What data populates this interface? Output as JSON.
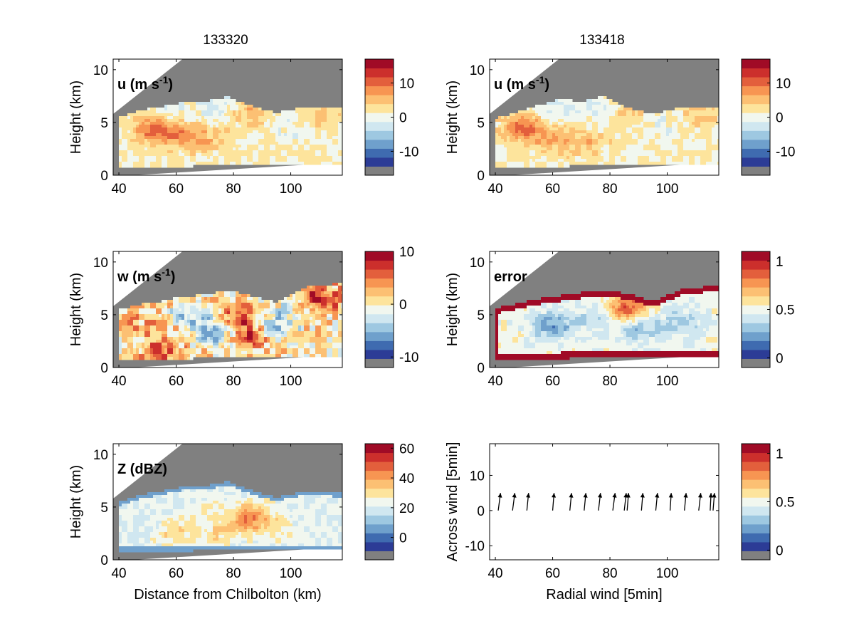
{
  "figure": {
    "left_title": "133320",
    "right_title": "133418"
  },
  "colormap": [
    "#2c3c96",
    "#3f6bb0",
    "#6fa0cc",
    "#9ec8e1",
    "#d0e7f0",
    "#f1f7ef",
    "#fde49c",
    "#fcc073",
    "#f79552",
    "#e35f3c",
    "#cc2f2c",
    "#a00b26"
  ],
  "masked_color": "#808080",
  "chart_data": [
    {
      "id": "u-133320",
      "type": "heatmap",
      "variable": "u",
      "panel_label": "u (m s",
      "panel_label_sup": "-1",
      "panel_label_close": ")",
      "ylabel": "Height (km)",
      "xlabel": "",
      "xlim": [
        38,
        118
      ],
      "ylim": [
        0,
        11
      ],
      "xticks": [
        "40",
        "60",
        "80",
        "100"
      ],
      "yticks": [
        "0",
        "5",
        "10"
      ],
      "colorbar": {
        "min": -17,
        "max": 17,
        "ticks": [
          "10",
          "0",
          "-10"
        ],
        "tick_values": [
          10,
          0,
          -10
        ]
      },
      "echo_top_km": {
        "x": [
          40,
          48,
          55,
          62,
          70,
          78,
          86,
          95,
          105,
          118
        ],
        "y": [
          5.5,
          6.2,
          6.5,
          6.9,
          7.0,
          7.4,
          6.6,
          5.9,
          6.5,
          6.3
        ]
      },
      "features": [
        {
          "x": 52,
          "y": 4.3,
          "v": 9
        },
        {
          "x": 62,
          "y": 3.8,
          "v": 6
        },
        {
          "x": 70,
          "y": 3.5,
          "v": 4
        },
        {
          "x": 58,
          "y": 6.2,
          "v": -3
        },
        {
          "x": 75,
          "y": 6.5,
          "v": -4
        },
        {
          "x": 85,
          "y": 6.0,
          "v": 5
        },
        {
          "x": 100,
          "y": 4.5,
          "v": -2
        },
        {
          "x": 110,
          "y": 5.5,
          "v": 3
        },
        {
          "x": 92,
          "y": 2.5,
          "v": 1
        }
      ]
    },
    {
      "id": "u-133418",
      "type": "heatmap",
      "variable": "u",
      "panel_label": "u (m s",
      "panel_label_sup": "-1",
      "panel_label_close": ")",
      "ylabel": "Height (km)",
      "xlabel": "",
      "xlim": [
        38,
        118
      ],
      "ylim": [
        0,
        11
      ],
      "xticks": [
        "40",
        "60",
        "80",
        "100"
      ],
      "yticks": [
        "0",
        "5",
        "10"
      ],
      "colorbar": {
        "min": -17,
        "max": 17,
        "ticks": [
          "10",
          "0",
          "-10"
        ],
        "tick_values": [
          10,
          0,
          -10
        ]
      },
      "echo_top_km": {
        "x": [
          40,
          48,
          55,
          62,
          70,
          78,
          86,
          95,
          105,
          118
        ],
        "y": [
          5.4,
          6.0,
          6.6,
          7.2,
          7.0,
          7.5,
          6.4,
          5.8,
          6.4,
          6.3
        ]
      },
      "features": [
        {
          "x": 50,
          "y": 4.5,
          "v": 9
        },
        {
          "x": 60,
          "y": 3.5,
          "v": 5
        },
        {
          "x": 72,
          "y": 3.2,
          "v": 4
        },
        {
          "x": 62,
          "y": 6.3,
          "v": -4
        },
        {
          "x": 78,
          "y": 6.0,
          "v": -3
        },
        {
          "x": 86,
          "y": 5.8,
          "v": 4
        },
        {
          "x": 98,
          "y": 4.8,
          "v": -2
        },
        {
          "x": 112,
          "y": 5.6,
          "v": 3
        }
      ]
    },
    {
      "id": "w-133320",
      "type": "heatmap",
      "variable": "w",
      "panel_label": "w (m s",
      "panel_label_sup": "-1",
      "panel_label_close": ")",
      "ylabel": "Height (km)",
      "xlabel": "",
      "xlim": [
        38,
        118
      ],
      "ylim": [
        0,
        11
      ],
      "xticks": [
        "40",
        "60",
        "80",
        "100"
      ],
      "yticks": [
        "0",
        "5",
        "10"
      ],
      "colorbar": {
        "min": -12,
        "max": 10,
        "ticks": [
          "10",
          "0",
          "-10"
        ],
        "tick_values": [
          10,
          0,
          -10
        ]
      },
      "echo_top_km": {
        "x": [
          40,
          48,
          55,
          62,
          70,
          78,
          86,
          95,
          105,
          118
        ],
        "y": [
          5.5,
          6.0,
          6.3,
          6.7,
          6.9,
          7.3,
          6.8,
          6.2,
          7.6,
          8.0
        ]
      },
      "features": [
        {
          "x": 75,
          "y": 3.5,
          "v": -9
        },
        {
          "x": 80,
          "y": 4.5,
          "v": 7
        },
        {
          "x": 85,
          "y": 3.0,
          "v": 6
        },
        {
          "x": 65,
          "y": 5.0,
          "v": -4
        },
        {
          "x": 95,
          "y": 4.0,
          "v": -5
        },
        {
          "x": 110,
          "y": 6.5,
          "v": 8
        },
        {
          "x": 55,
          "y": 1.5,
          "v": 6
        },
        {
          "x": 50,
          "y": 4.0,
          "v": 2
        },
        {
          "x": 100,
          "y": 5.5,
          "v": -2
        }
      ]
    },
    {
      "id": "error-133418",
      "type": "heatmap",
      "variable": "error",
      "panel_label": "error",
      "panel_label_sup": "",
      "panel_label_close": "",
      "ylabel": "Height (km)",
      "xlabel": "",
      "xlim": [
        38,
        118
      ],
      "ylim": [
        0,
        11
      ],
      "xticks": [
        "40",
        "60",
        "80",
        "100"
      ],
      "yticks": [
        "0",
        "5",
        "10"
      ],
      "colorbar": {
        "min": -0.1,
        "max": 1.1,
        "ticks": [
          "1",
          "0.5",
          "0"
        ],
        "tick_values": [
          1,
          0.5,
          0
        ]
      },
      "echo_top_km": {
        "x": [
          40,
          48,
          55,
          62,
          70,
          78,
          86,
          95,
          105,
          118
        ],
        "y": [
          5.6,
          6.1,
          6.5,
          6.8,
          7.1,
          7.3,
          7.0,
          6.3,
          7.4,
          7.8
        ]
      },
      "features": [
        {
          "x": 60,
          "y": 4.0,
          "v": 0.15
        },
        {
          "x": 75,
          "y": 4.5,
          "v": 0.3
        },
        {
          "x": 90,
          "y": 3.8,
          "v": 0.2
        },
        {
          "x": 105,
          "y": 4.2,
          "v": 0.25
        },
        {
          "x": 86,
          "y": 5.5,
          "v": 0.9
        }
      ]
    },
    {
      "id": "z-133320",
      "type": "heatmap",
      "variable": "Z",
      "panel_label": "Z (dBZ)",
      "panel_label_sup": "",
      "panel_label_close": "",
      "ylabel": "Height (km)",
      "xlabel": "Distance from Chilbolton (km)",
      "xlim": [
        38,
        118
      ],
      "ylim": [
        0,
        11
      ],
      "xticks": [
        "40",
        "60",
        "80",
        "100"
      ],
      "yticks": [
        "0",
        "5",
        "10"
      ],
      "colorbar": {
        "min": -15,
        "max": 63,
        "ticks": [
          "60",
          "40",
          "20",
          "0"
        ],
        "tick_values": [
          60,
          40,
          20,
          0
        ]
      },
      "echo_top_km": {
        "x": [
          40,
          48,
          55,
          62,
          70,
          78,
          86,
          95,
          105,
          118
        ],
        "y": [
          5.5,
          6.2,
          6.5,
          6.9,
          7.0,
          7.4,
          6.6,
          5.9,
          6.5,
          6.3
        ]
      },
      "features": [
        {
          "x": 86,
          "y": 4.0,
          "v": 42
        },
        {
          "x": 60,
          "y": 2.5,
          "v": 30
        },
        {
          "x": 75,
          "y": 2.5,
          "v": 28
        },
        {
          "x": 95,
          "y": 2.8,
          "v": 26
        },
        {
          "x": 70,
          "y": 4.5,
          "v": 22
        }
      ]
    },
    {
      "id": "arrows-133418",
      "type": "scatter",
      "variable": "wind",
      "panel_label": "",
      "panel_label_sup": "",
      "panel_label_close": "",
      "ylabel": "Across wind [5min]",
      "xlabel": "Radial wind [5min]",
      "xlim": [
        38,
        118
      ],
      "ylim": [
        -14,
        19
      ],
      "xticks": [
        "40",
        "60",
        "80",
        "100"
      ],
      "yticks": [
        "-10",
        "0",
        "10"
      ],
      "colorbar": {
        "min": -0.1,
        "max": 1.1,
        "ticks": [
          "1",
          "0.5",
          "0"
        ],
        "tick_values": [
          1,
          0.5,
          0
        ]
      },
      "arrows": {
        "x": [
          41,
          46,
          51,
          60,
          66,
          71,
          76,
          81,
          85,
          86,
          91,
          96,
          101,
          106,
          111,
          115,
          116
        ],
        "y": [
          0,
          0,
          0,
          0,
          0,
          0,
          0,
          0,
          0,
          0,
          0,
          0,
          0,
          0,
          0,
          0,
          0
        ],
        "u": [
          0.8,
          0.8,
          0.6,
          0.5,
          0.6,
          0.6,
          0.7,
          0.8,
          0.7,
          0.5,
          0.5,
          0.6,
          0.4,
          0.6,
          0.7,
          0.3,
          0.5
        ],
        "v": [
          5,
          5,
          5,
          5,
          5,
          5,
          5,
          5,
          5,
          5,
          5,
          5,
          5,
          5,
          5,
          5,
          5
        ]
      }
    }
  ]
}
